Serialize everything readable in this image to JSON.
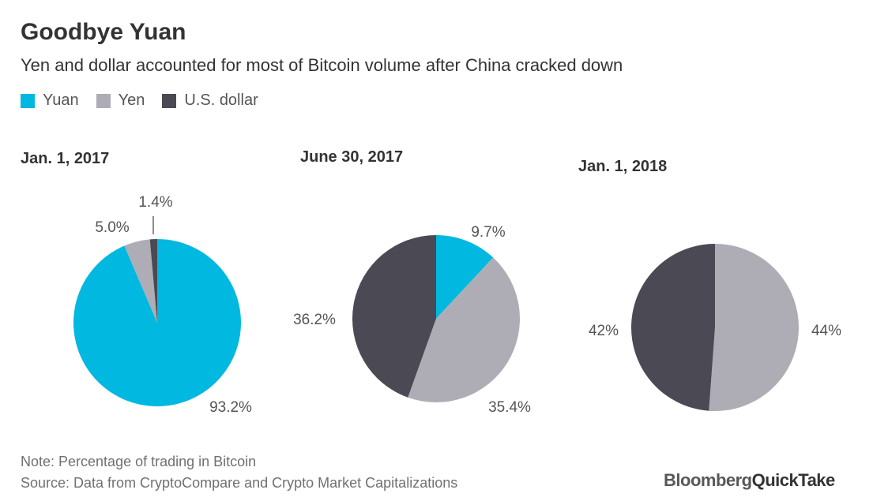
{
  "title": "Goodbye Yuan",
  "subtitle": "Yen and dollar accounted for most of Bitcoin volume after China cracked down",
  "legend": [
    {
      "label": "Yuan",
      "color": "#00b8e0"
    },
    {
      "label": "Yen",
      "color": "#aeadb5"
    },
    {
      "label": "U.S. dollar",
      "color": "#4b4954"
    }
  ],
  "chart_data": [
    {
      "type": "pie",
      "title": "Jan. 1, 2017",
      "slices": [
        {
          "label": "Yuan",
          "value": 93.2,
          "display": "93.2%"
        },
        {
          "label": "Yen",
          "value": 5.0,
          "display": "5.0%"
        },
        {
          "label": "U.S. dollar",
          "value": 1.4,
          "display": "1.4%"
        }
      ]
    },
    {
      "type": "pie",
      "title": "June 30, 2017",
      "slices": [
        {
          "label": "Yuan",
          "value": 9.7,
          "display": "9.7%"
        },
        {
          "label": "Yen",
          "value": 35.4,
          "display": "35.4%"
        },
        {
          "label": "U.S. dollar",
          "value": 36.2,
          "display": "36.2%"
        }
      ]
    },
    {
      "type": "pie",
      "title": "Jan. 1, 2018",
      "slices": [
        {
          "label": "Yuan",
          "value": 0,
          "display": ""
        },
        {
          "label": "Yen",
          "value": 44,
          "display": "44%"
        },
        {
          "label": "U.S. dollar",
          "value": 42,
          "display": "42%"
        }
      ]
    }
  ],
  "footer": {
    "note": "Note: Percentage of trading in Bitcoin",
    "source": "Source: Data from CryptoCompare and Crypto Market Capitalizations",
    "logo_part1": "Bloomberg",
    "logo_part2": "QuickTake"
  }
}
